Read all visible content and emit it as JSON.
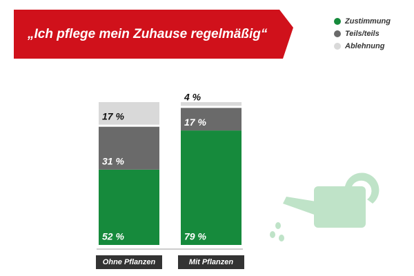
{
  "chart_data": {
    "type": "stacked-bar",
    "title": "„Ich pflege mein Zuhause regelmäßig“",
    "categories": [
      "Ohne Pflanzen",
      "Mit Pflanzen"
    ],
    "series": [
      {
        "name": "Zustimmung",
        "color": "#168a3c",
        "values": [
          52,
          79
        ],
        "value_labels": [
          "52 %",
          "79 %"
        ]
      },
      {
        "name": "Teils/teils",
        "color": "#6a6a6a",
        "values": [
          31,
          17
        ],
        "value_labels": [
          "31 %",
          "17 %"
        ]
      },
      {
        "name": "Ablehnung",
        "color": "#d9d9d9",
        "values": [
          17,
          4
        ],
        "value_labels": [
          "17 %",
          "4 %"
        ]
      }
    ]
  }
}
